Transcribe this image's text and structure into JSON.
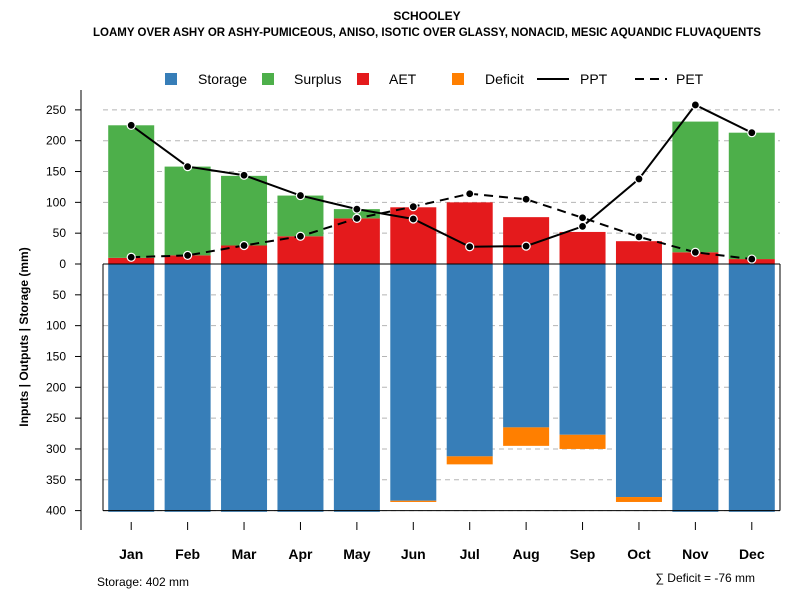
{
  "chart_data": {
    "type": "bar",
    "title": "SCHOOLEY",
    "subtitle": "LOAMY OVER ASHY OR ASHY-PUMICEOUS, ANISO, ISOTIC OVER GLASSY, NONACID, MESIC AQUANDIC FLUVAQUENTS",
    "ylabel": "Inputs | Outputs | Storage    (mm)",
    "categories": [
      "Jan",
      "Feb",
      "Mar",
      "Apr",
      "May",
      "Jun",
      "Jul",
      "Aug",
      "Sep",
      "Oct",
      "Nov",
      "Dec"
    ],
    "ylim": [
      -400,
      250
    ],
    "y_ticks": [
      250,
      200,
      150,
      100,
      50,
      0,
      -50,
      -100,
      -150,
      -200,
      -250,
      -300,
      -350,
      -400
    ],
    "y_tick_labels": [
      "250",
      "200",
      "150",
      "100",
      "50",
      "0",
      "50",
      "100",
      "150",
      "200",
      "250",
      "300",
      "350",
      "400"
    ],
    "legend": [
      {
        "label": "Storage",
        "kind": "square",
        "color": "#377eb8"
      },
      {
        "label": "Surplus",
        "kind": "square",
        "color": "#4daf4a"
      },
      {
        "label": "AET",
        "kind": "square",
        "color": "#e41a1c"
      },
      {
        "label": "Deficit",
        "kind": "square",
        "color": "#ff7f00"
      },
      {
        "label": "PPT",
        "kind": "solid-line",
        "color": "#000000"
      },
      {
        "label": "PET",
        "kind": "dashed-line",
        "color": "#000000"
      }
    ],
    "series": [
      {
        "name": "Storage",
        "color": "#377eb8",
        "values": [
          402,
          402,
          402,
          402,
          402,
          384,
          312,
          265,
          277,
          378,
          402,
          402
        ]
      },
      {
        "name": "Deficit",
        "color": "#ff7f00",
        "values": [
          0,
          0,
          0,
          0,
          0,
          2,
          13,
          30,
          23,
          8,
          0,
          0
        ]
      },
      {
        "name": "AET",
        "color": "#e41a1c",
        "values": [
          10,
          14,
          30,
          45,
          74,
          92,
          100,
          76,
          52,
          37,
          19,
          8
        ]
      },
      {
        "name": "Surplus",
        "color": "#4daf4a",
        "values": [
          215,
          144,
          113,
          66,
          15,
          0,
          0,
          0,
          0,
          0,
          212,
          205
        ]
      },
      {
        "name": "PPT",
        "color": "#000000",
        "values": [
          225,
          158,
          144,
          111,
          89,
          73,
          28,
          29,
          61,
          138,
          258,
          213
        ]
      },
      {
        "name": "PET",
        "color": "#000000",
        "values": [
          11,
          14,
          30,
          45,
          74,
          93,
          114,
          105,
          75,
          44,
          19,
          8
        ]
      }
    ],
    "footer_left": "Storage: 402 mm",
    "footer_right": "∑ Deficit = -76 mm"
  }
}
